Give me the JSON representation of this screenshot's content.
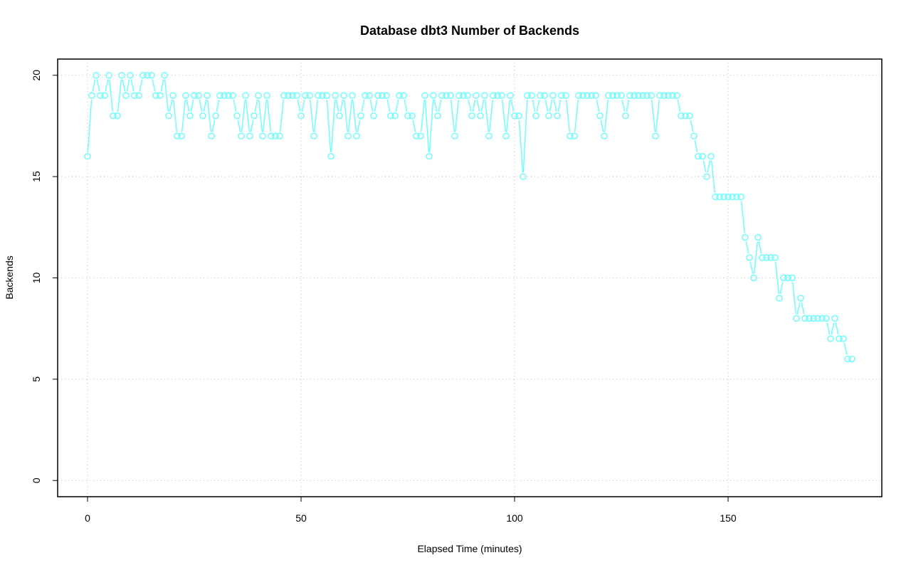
{
  "chart_data": {
    "type": "line",
    "title": "Database dbt3 Number of Backends",
    "xlabel": "Elapsed Time (minutes)",
    "ylabel": "Backends",
    "xlim": [
      -7,
      186
    ],
    "ylim": [
      -0.8,
      20.8
    ],
    "xticks": [
      0,
      50,
      100,
      150
    ],
    "yticks": [
      0,
      5,
      10,
      15,
      20
    ],
    "grid": true,
    "color": "#66ffff",
    "marker": "open-circle",
    "series": [
      {
        "x": [
          0,
          1,
          2,
          3,
          4,
          5,
          6,
          7,
          8,
          9,
          10,
          11,
          12,
          13,
          14,
          15,
          16,
          17,
          18,
          19,
          20,
          21,
          22,
          23,
          24,
          25,
          26,
          27,
          28,
          29,
          30,
          31,
          32,
          33,
          34,
          35,
          36,
          37,
          38,
          39,
          40,
          41,
          42,
          43,
          44,
          45,
          46,
          47,
          48,
          49,
          50,
          51,
          52,
          53,
          54,
          55,
          56,
          57,
          58,
          59,
          60,
          61,
          62,
          63,
          64,
          65,
          66,
          67,
          68,
          69,
          70,
          71,
          72,
          73,
          74,
          75,
          76,
          77,
          78,
          79,
          80,
          81,
          82,
          83,
          84,
          85,
          86,
          87,
          88,
          89,
          90,
          91,
          92,
          93,
          94,
          95,
          96,
          97,
          98,
          99,
          100,
          101,
          102,
          103,
          104,
          105,
          106,
          107,
          108,
          109,
          110,
          111,
          112,
          113,
          114,
          115,
          116,
          117,
          118,
          119,
          120,
          121,
          122,
          123,
          124,
          125,
          126,
          127,
          128,
          129,
          130,
          131,
          132,
          133,
          134,
          135,
          136,
          137,
          138,
          139,
          140,
          141,
          142,
          143,
          144,
          145,
          146,
          147,
          148,
          149,
          150,
          151,
          152,
          153,
          154,
          155,
          156,
          157,
          158,
          159,
          160,
          161,
          162,
          163,
          164,
          165,
          166,
          167,
          168,
          169,
          170,
          171,
          172,
          173,
          174,
          175,
          176,
          177,
          178,
          179
        ],
        "y": [
          16,
          19,
          20,
          19,
          19,
          20,
          18,
          18,
          20,
          19,
          20,
          19,
          19,
          20,
          20,
          20,
          19,
          19,
          20,
          18,
          19,
          17,
          17,
          19,
          18,
          19,
          19,
          18,
          19,
          17,
          18,
          19,
          19,
          19,
          19,
          18,
          17,
          19,
          17,
          18,
          19,
          17,
          19,
          17,
          17,
          17,
          19,
          19,
          19,
          19,
          18,
          19,
          19,
          17,
          19,
          19,
          19,
          16,
          19,
          18,
          19,
          17,
          19,
          17,
          18,
          19,
          19,
          18,
          19,
          19,
          19,
          18,
          18,
          19,
          19,
          18,
          18,
          17,
          17,
          19,
          16,
          19,
          18,
          19,
          19,
          19,
          17,
          19,
          19,
          19,
          18,
          19,
          18,
          19,
          17,
          19,
          19,
          19,
          17,
          19,
          18,
          18,
          15,
          19,
          19,
          18,
          19,
          19,
          18,
          19,
          18,
          19,
          19,
          17,
          17,
          19,
          19,
          19,
          19,
          19,
          18,
          17,
          19,
          19,
          19,
          19,
          18,
          19,
          19,
          19,
          19,
          19,
          19,
          17,
          19,
          19,
          19,
          19,
          19,
          18,
          18,
          18,
          17,
          16,
          16,
          15,
          16,
          14,
          14,
          14,
          14,
          14,
          14,
          14,
          12,
          11,
          10,
          12,
          11,
          11,
          11,
          11,
          9,
          10,
          10,
          10,
          8,
          9,
          8,
          8,
          8,
          8,
          8,
          8,
          7,
          8,
          7,
          7,
          6,
          6
        ]
      }
    ]
  }
}
